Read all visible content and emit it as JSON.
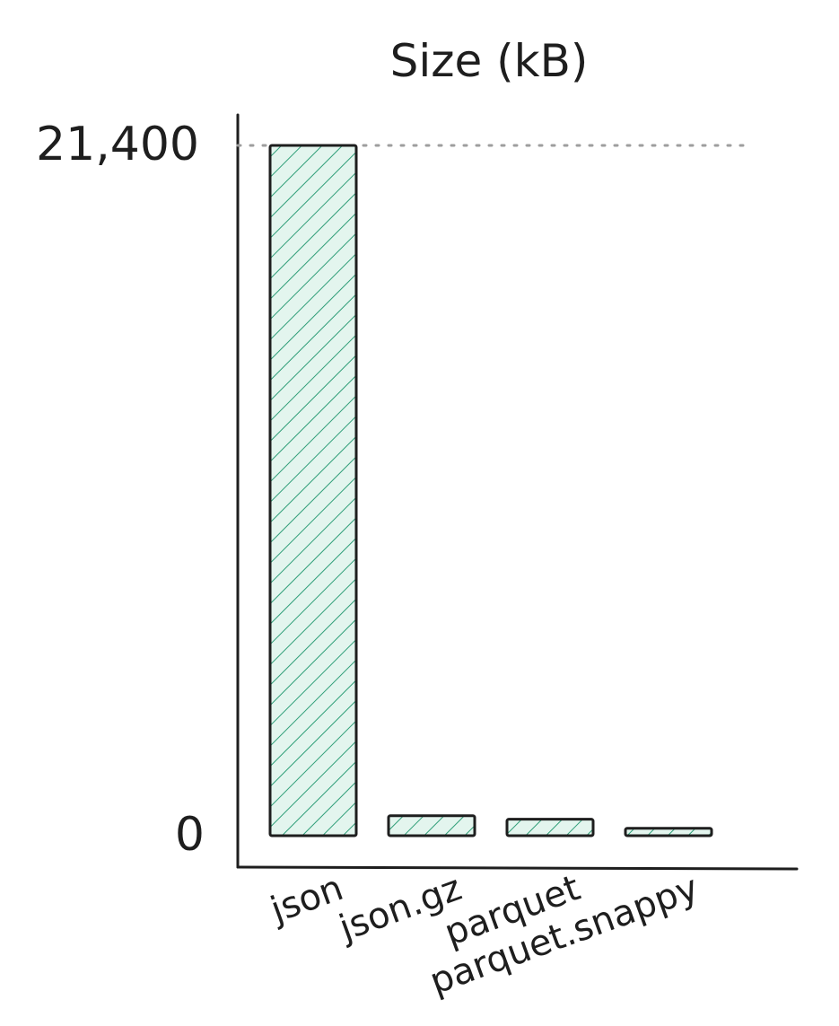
{
  "chart_data": {
    "type": "bar",
    "title": "Size (kB)",
    "xlabel": "",
    "ylabel": "",
    "categories": [
      "json",
      "json.gz",
      "parquet",
      "parquet.snappy"
    ],
    "values": [
      21400,
      620,
      510,
      230
    ],
    "ylim": [
      0,
      21400
    ],
    "y_tick_labels": [
      "0",
      "21,400"
    ],
    "reference_line": {
      "value": 21400,
      "style": "dotted",
      "color": "#9e9e9e"
    },
    "grid": false,
    "legend": "none",
    "colors": {
      "bar_fill": "#e3f5ee",
      "bar_hatch": "#2f9e78",
      "bar_stroke": "#1e1e1e",
      "axis": "#1e1e1e",
      "text": "#1e1e1e"
    }
  }
}
